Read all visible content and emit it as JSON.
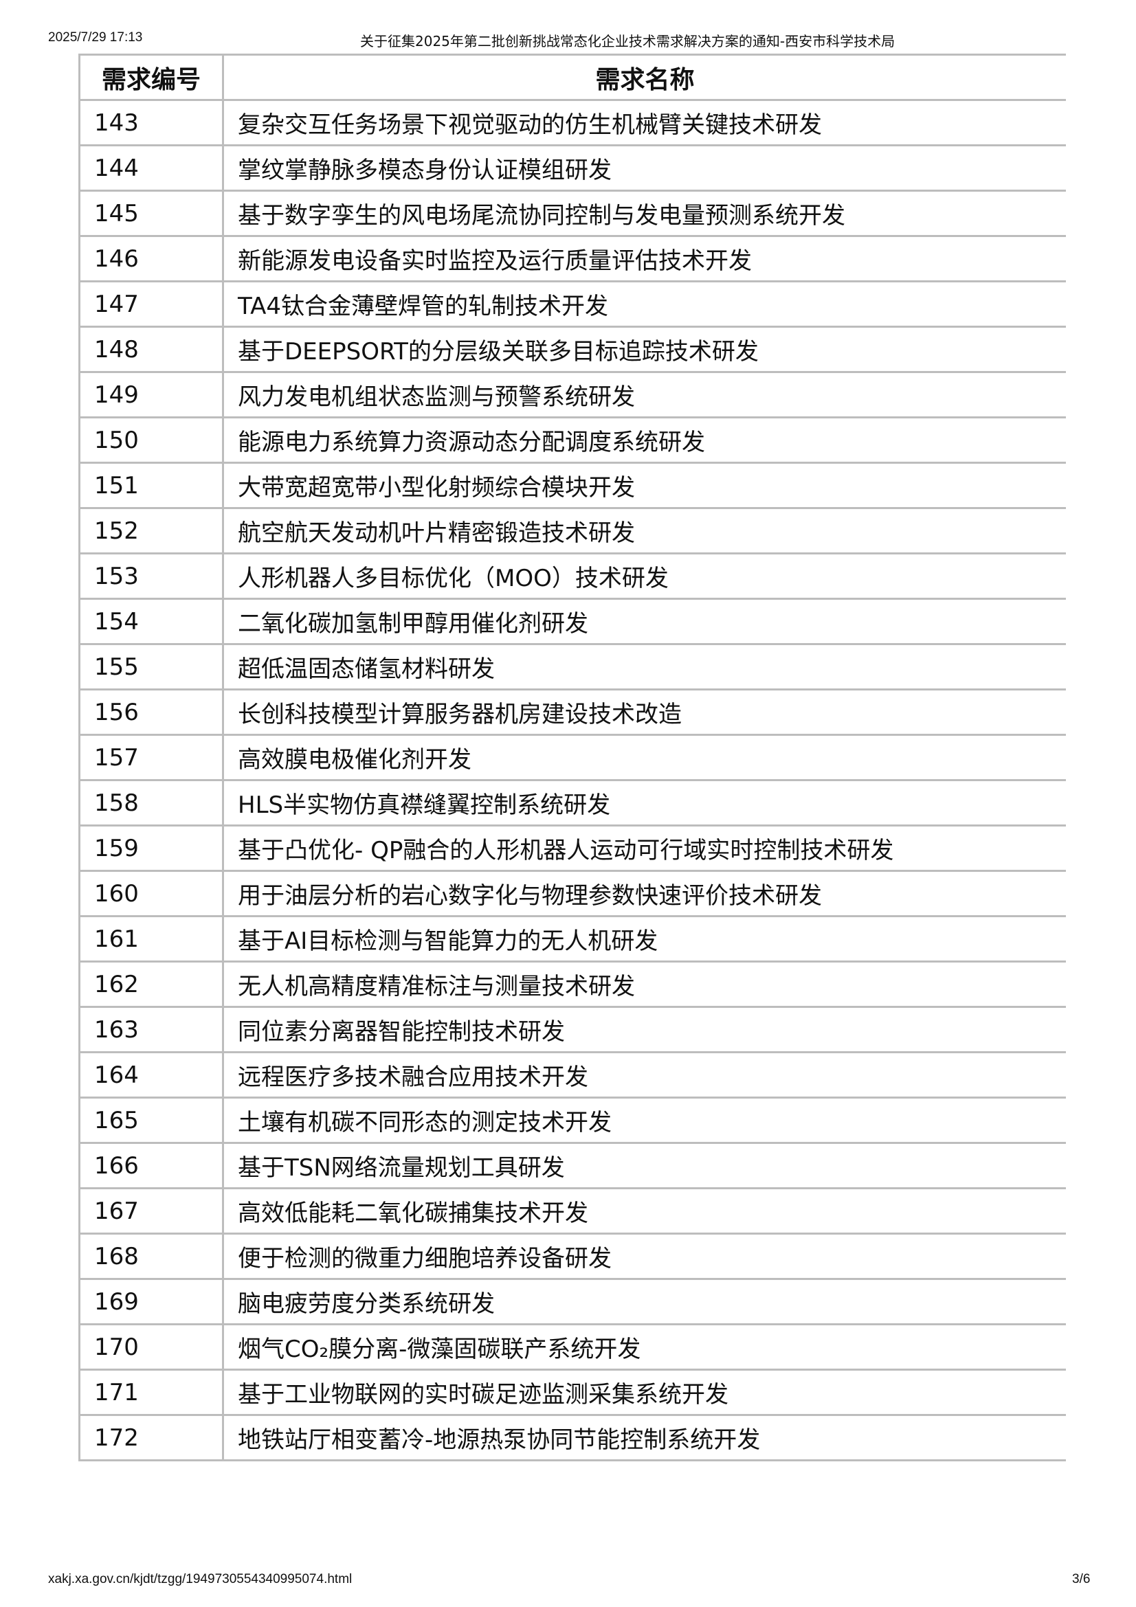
{
  "header": {
    "datetime": "2025/7/29 17:13",
    "title": "关于征集2025年第二批创新挑战常态化企业技术需求解决方案的通知-西安市科学技术局"
  },
  "table": {
    "columns": [
      "需求编号",
      "需求名称"
    ],
    "rows": [
      [
        "143",
        "复杂交互任务场景下视觉驱动的仿生机械臂关键技术研发"
      ],
      [
        "144",
        "掌纹掌静脉多模态身份认证模组研发"
      ],
      [
        "145",
        "基于数字孪生的风电场尾流协同控制与发电量预测系统开发"
      ],
      [
        "146",
        "新能源发电设备实时监控及运行质量评估技术开发"
      ],
      [
        "147",
        "TA4钛合金薄壁焊管的轧制技术开发"
      ],
      [
        "148",
        "基于DEEPSORT的分层级关联多目标追踪技术研发"
      ],
      [
        "149",
        "风力发电机组状态监测与预警系统研发"
      ],
      [
        "150",
        "能源电力系统算力资源动态分配调度系统研发"
      ],
      [
        "151",
        "大带宽超宽带小型化射频综合模块开发"
      ],
      [
        "152",
        "航空航天发动机叶片精密锻造技术研发"
      ],
      [
        "153",
        "人形机器人多目标优化（MOO）技术研发"
      ],
      [
        "154",
        "二氧化碳加氢制甲醇用催化剂研发"
      ],
      [
        "155",
        "超低温固态储氢材料研发"
      ],
      [
        "156",
        "长创科技模型计算服务器机房建设技术改造"
      ],
      [
        "157",
        "高效膜电极催化剂开发"
      ],
      [
        "158",
        "HLS半实物仿真襟缝翼控制系统研发"
      ],
      [
        "159",
        "基于凸优化- QP融合的人形机器人运动可行域实时控制技术研发"
      ],
      [
        "160",
        "用于油层分析的岩心数字化与物理参数快速评价技术研发"
      ],
      [
        "161",
        "基于AI目标检测与智能算力的无人机研发"
      ],
      [
        "162",
        "无人机高精度精准标注与测量技术研发"
      ],
      [
        "163",
        "同位素分离器智能控制技术研发"
      ],
      [
        "164",
        "远程医疗多技术融合应用技术开发"
      ],
      [
        "165",
        "土壤有机碳不同形态的测定技术开发"
      ],
      [
        "166",
        "基于TSN网络流量规划工具研发"
      ],
      [
        "167",
        "高效低能耗二氧化碳捕集技术开发"
      ],
      [
        "168",
        "便于检测的微重力细胞培养设备研发"
      ],
      [
        "169",
        "脑电疲劳度分类系统研发"
      ],
      [
        "170",
        "烟气CO₂膜分离-微藻固碳联产系统开发"
      ],
      [
        "171",
        "基于工业物联网的实时碳足迹监测采集系统开发"
      ],
      [
        "172",
        "地铁站厅相变蓄冷-地源热泵协同节能控制系统开发"
      ]
    ]
  },
  "footer": {
    "url": "xakj.xa.gov.cn/kjdt/tzgg/1949730554340995074.html",
    "page": "3/6"
  }
}
